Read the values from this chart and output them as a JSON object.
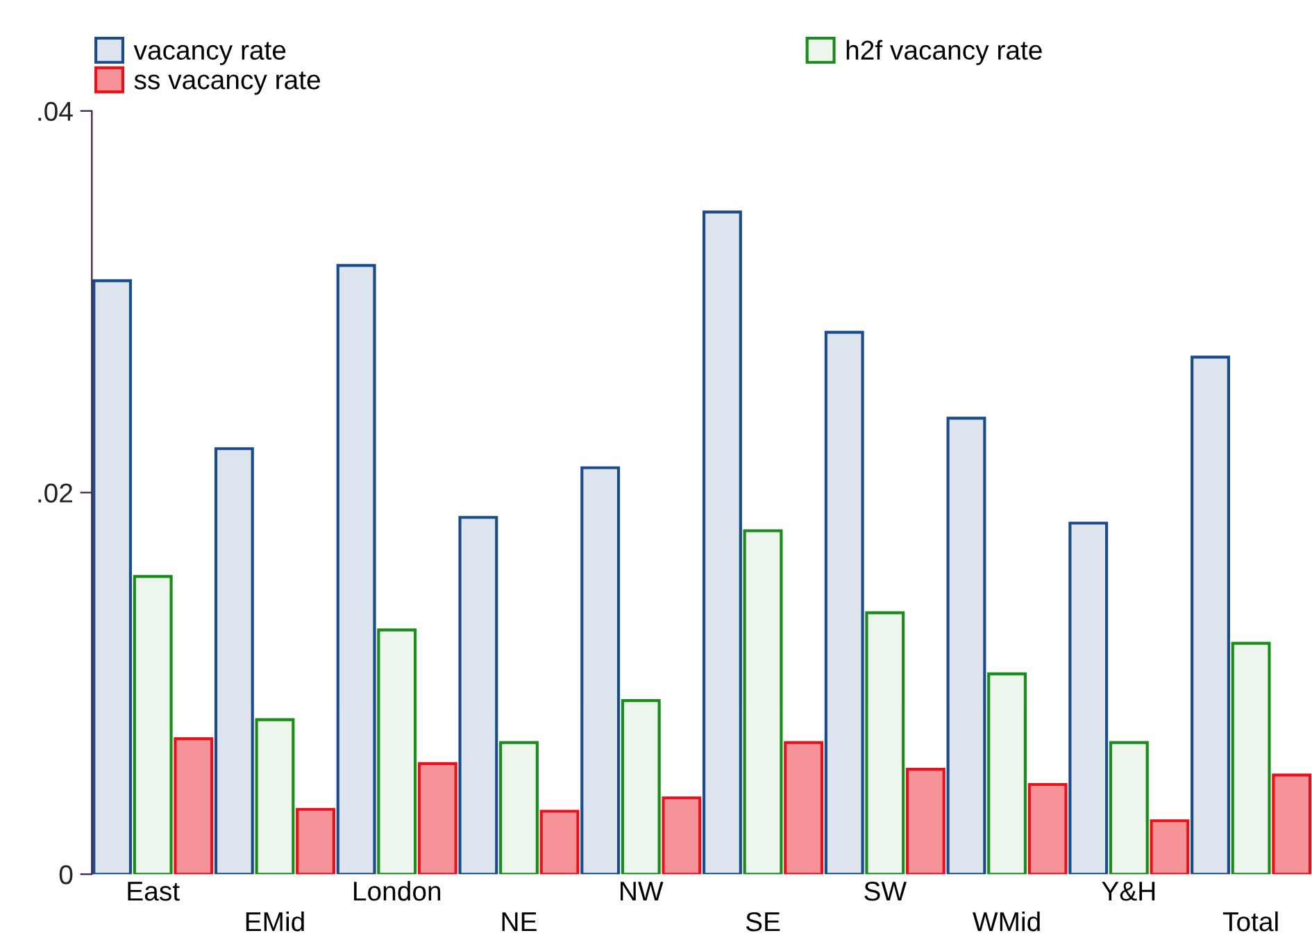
{
  "chart_data": {
    "type": "bar",
    "categories": [
      "East",
      "EMid",
      "London",
      "NE",
      "NW",
      "SE",
      "SW",
      "WMid",
      "Y&H",
      "Total"
    ],
    "series": [
      {
        "name": "vacancy rate",
        "color": "#1a4c8c",
        "values": [
          0.0311,
          0.0223,
          0.0319,
          0.0187,
          0.0213,
          0.0347,
          0.0284,
          0.0239,
          0.0184,
          0.0271
        ]
      },
      {
        "name": "h2f vacancy rate",
        "color": "#1a8c1a",
        "values": [
          0.0156,
          0.0081,
          0.0128,
          0.0069,
          0.0091,
          0.018,
          0.0137,
          0.0105,
          0.0069,
          0.0121
        ]
      },
      {
        "name": "ss vacancy rate",
        "color": "#e8101a",
        "values": [
          0.0071,
          0.0034,
          0.0058,
          0.0033,
          0.004,
          0.0069,
          0.0055,
          0.0047,
          0.0028,
          0.0052
        ]
      }
    ],
    "ylim": [
      0,
      0.04
    ],
    "yticks": [
      {
        "value": 0,
        "label": "0"
      },
      {
        "value": 0.02,
        "label": ".02"
      },
      {
        "value": 0.04,
        "label": ".04"
      }
    ],
    "legend": "top",
    "grid": false
  }
}
